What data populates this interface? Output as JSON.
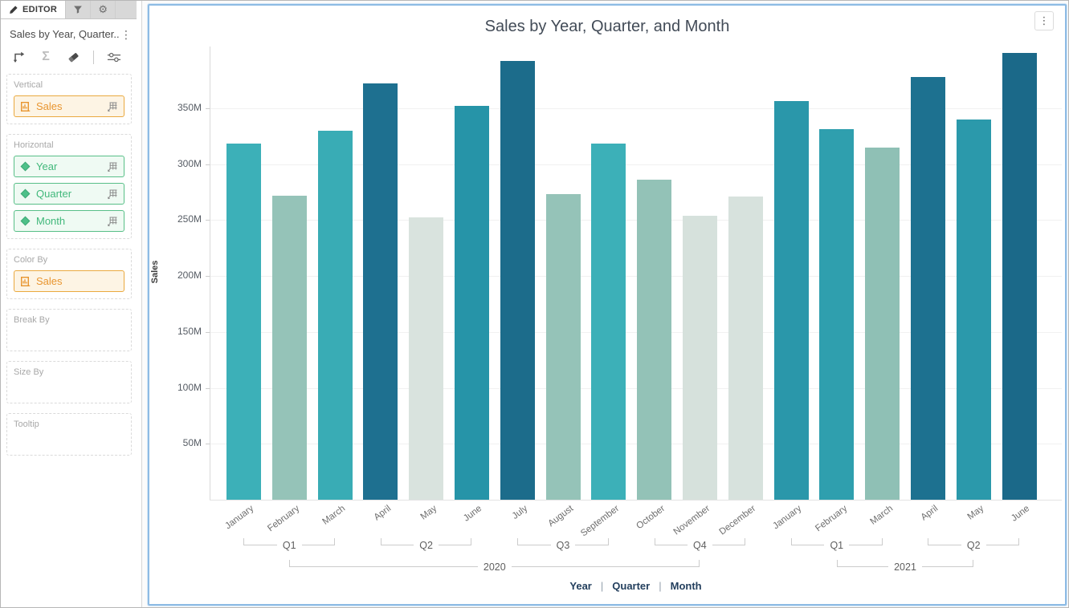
{
  "editor_panel": {
    "tabs": [
      {
        "id": "editor",
        "label": "EDITOR",
        "icon": "pencil-icon",
        "active": true
      },
      {
        "id": "filters",
        "label": "",
        "icon": "funnel-icon",
        "active": false
      },
      {
        "id": "settings",
        "label": "",
        "icon": "gear-icon",
        "active": false
      }
    ],
    "widget_title": "Sales by Year, Quarter...",
    "toolbar_icons": [
      "corner-arrow-icon",
      "sigma-icon",
      "eraser-icon",
      "sliders-icon"
    ],
    "wells": [
      {
        "label": "Vertical",
        "pills": [
          {
            "name": "Sales",
            "kind": "measure",
            "grid": true
          }
        ]
      },
      {
        "label": "Horizontal",
        "pills": [
          {
            "name": "Year",
            "kind": "dimension",
            "grid": true
          },
          {
            "name": "Quarter",
            "kind": "dimension",
            "grid": true
          },
          {
            "name": "Month",
            "kind": "dimension",
            "grid": true
          }
        ]
      },
      {
        "label": "Color By",
        "pills": [
          {
            "name": "Sales",
            "kind": "measure",
            "grid": false
          }
        ]
      },
      {
        "label": "Break By",
        "pills": []
      },
      {
        "label": "Size By",
        "pills": []
      },
      {
        "label": "Tooltip",
        "pills": []
      }
    ],
    "colors": {
      "measure_accent": "#e8952f",
      "measure_border": "#eaa93f",
      "measure_bg": "#fdf4e4",
      "dimension_accent": "#41b87b",
      "dimension_border": "#58bf88",
      "dimension_bg": "#effaf3"
    }
  },
  "chart_data": {
    "type": "bar",
    "title": "Sales by Year, Quarter, and Month",
    "y_axis_title": "Sales",
    "unit": "M",
    "y_ticks_m": [
      50,
      100,
      150,
      200,
      250,
      300,
      350
    ],
    "ylim_m": [
      0,
      405
    ],
    "grid": true,
    "legend_position": "bottom",
    "months": [
      "January",
      "February",
      "March",
      "April",
      "May",
      "June",
      "July",
      "August",
      "September",
      "October",
      "November",
      "December",
      "January",
      "February",
      "March",
      "April",
      "May",
      "June"
    ],
    "values_m": [
      318,
      272,
      330,
      372,
      252,
      352,
      392,
      273,
      318,
      286,
      254,
      271,
      356,
      331,
      315,
      378,
      340,
      399
    ],
    "bar_colors": [
      "#3cb0b8",
      "#95c3b8",
      "#39acb5",
      "#1e7090",
      "#d9e3de",
      "#2694a8",
      "#1c6c8b",
      "#95c3b8",
      "#3cb0b8",
      "#93c2b7",
      "#d6e1dc",
      "#d7e2dd",
      "#2a97aa",
      "#2f9fae",
      "#8fc0b5",
      "#1d7190",
      "#2b99ab",
      "#1b6989"
    ],
    "quarters": [
      {
        "label": "Q1",
        "m_start": 0,
        "m_end": 2
      },
      {
        "label": "Q2",
        "m_start": 3,
        "m_end": 5
      },
      {
        "label": "Q3",
        "m_start": 6,
        "m_end": 8
      },
      {
        "label": "Q4",
        "m_start": 9,
        "m_end": 11
      },
      {
        "label": "Q1",
        "m_start": 12,
        "m_end": 14
      },
      {
        "label": "Q2",
        "m_start": 15,
        "m_end": 17
      }
    ],
    "years": [
      {
        "label": "2020",
        "q_start": 0,
        "q_end": 3,
        "m_start": 0,
        "m_end": 11
      },
      {
        "label": "2021",
        "q_start": 4,
        "q_end": 5,
        "m_start": 12,
        "m_end": 17
      }
    ],
    "legend": [
      "Year",
      "Quarter",
      "Month"
    ]
  }
}
